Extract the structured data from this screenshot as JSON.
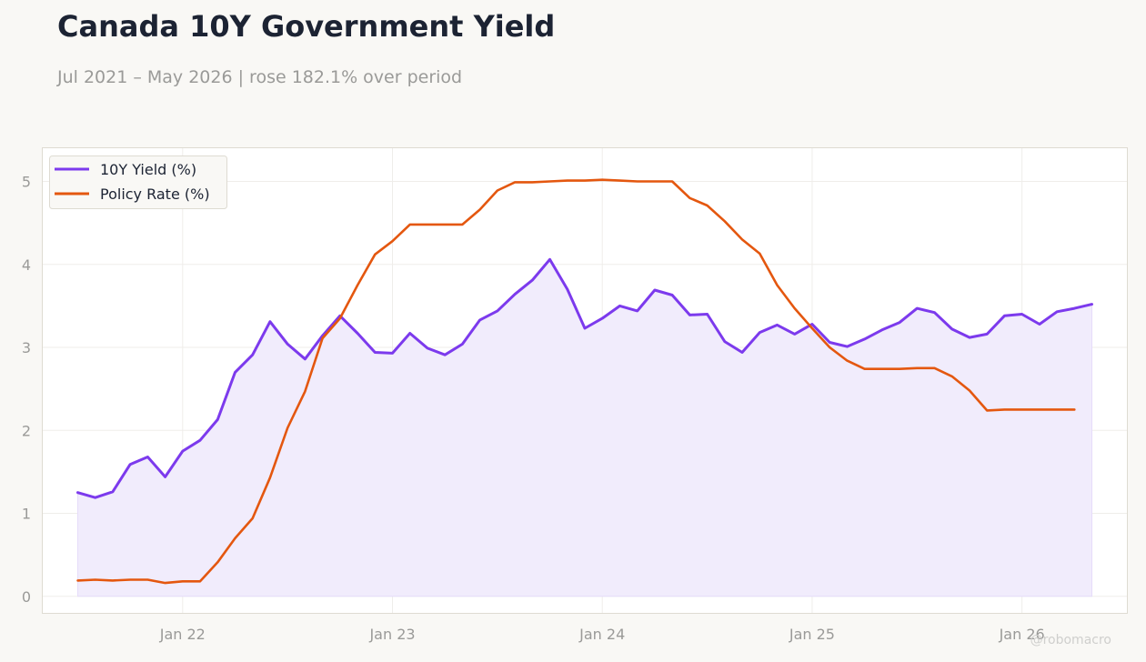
{
  "title": "Canada 10Y Government Yield",
  "subtitle": "Jul 2021 – May 2026 | rose 182.1% over period",
  "watermark": "@robomacro",
  "colors": {
    "background": "#f9f8f5",
    "plot_background": "#ffffff",
    "yield": "#7c3aed",
    "yield_fill": "#f1ecfc",
    "policy": "#e4570f",
    "title": "#1c2333",
    "muted": "#9a9a98"
  },
  "chart_data": {
    "type": "line",
    "title": "Canada 10Y Government Yield",
    "subtitle": "Jul 2021 – May 2026 | rose 182.1% over period",
    "x_ticks": [
      "Jan 22",
      "Jan 23",
      "Jan 24",
      "Jan 25",
      "Jan 26"
    ],
    "y_ticks": [
      0,
      1,
      2,
      3,
      4,
      5
    ],
    "xlim": [
      "2021-05",
      "2026-07"
    ],
    "ylim": [
      -0.2,
      5.4
    ],
    "grid": true,
    "legend_position": "top-left",
    "series": [
      {
        "name": "10Y Yield (%)",
        "color": "#7c3aed",
        "area_fill": true,
        "x": [
          "2021-07",
          "2021-08",
          "2021-09",
          "2021-10",
          "2021-11",
          "2021-12",
          "2022-01",
          "2022-02",
          "2022-03",
          "2022-04",
          "2022-05",
          "2022-06",
          "2022-07",
          "2022-08",
          "2022-09",
          "2022-10",
          "2022-11",
          "2022-12",
          "2023-01",
          "2023-02",
          "2023-03",
          "2023-04",
          "2023-05",
          "2023-06",
          "2023-07",
          "2023-08",
          "2023-09",
          "2023-10",
          "2023-11",
          "2023-12",
          "2024-01",
          "2024-02",
          "2024-03",
          "2024-04",
          "2024-05",
          "2024-06",
          "2024-07",
          "2024-08",
          "2024-09",
          "2024-10",
          "2024-11",
          "2024-12",
          "2025-01",
          "2025-02",
          "2025-03",
          "2025-04",
          "2025-05",
          "2025-06",
          "2025-07",
          "2025-08",
          "2025-09",
          "2025-10",
          "2025-11",
          "2025-12",
          "2026-01",
          "2026-02",
          "2026-03",
          "2026-04",
          "2026-05"
        ],
        "values": [
          1.25,
          1.19,
          1.26,
          1.59,
          1.68,
          1.44,
          1.75,
          1.88,
          2.13,
          2.7,
          2.91,
          3.31,
          3.04,
          2.86,
          3.14,
          3.38,
          3.17,
          2.94,
          2.93,
          3.17,
          2.99,
          2.91,
          3.04,
          3.33,
          3.44,
          3.64,
          3.81,
          4.06,
          3.7,
          3.23,
          3.35,
          3.5,
          3.44,
          3.69,
          3.63,
          3.39,
          3.4,
          3.07,
          2.94,
          3.18,
          3.27,
          3.16,
          3.28,
          3.06,
          3.01,
          3.1,
          3.21,
          3.3,
          3.47,
          3.42,
          3.22,
          3.12,
          3.16,
          3.38,
          3.4,
          3.28,
          3.43,
          3.47,
          3.52
        ]
      },
      {
        "name": "Policy Rate (%)",
        "color": "#e4570f",
        "area_fill": false,
        "x": [
          "2021-07",
          "2021-08",
          "2021-09",
          "2021-10",
          "2021-11",
          "2021-12",
          "2022-01",
          "2022-02",
          "2022-03",
          "2022-04",
          "2022-05",
          "2022-06",
          "2022-07",
          "2022-08",
          "2022-09",
          "2022-10",
          "2022-11",
          "2022-12",
          "2023-01",
          "2023-02",
          "2023-03",
          "2023-04",
          "2023-05",
          "2023-06",
          "2023-07",
          "2023-08",
          "2023-09",
          "2023-10",
          "2023-11",
          "2023-12",
          "2024-01",
          "2024-02",
          "2024-03",
          "2024-04",
          "2024-05",
          "2024-06",
          "2024-07",
          "2024-08",
          "2024-09",
          "2024-10",
          "2024-11",
          "2024-12",
          "2025-01",
          "2025-02",
          "2025-03",
          "2025-04",
          "2025-05",
          "2025-06",
          "2025-07",
          "2025-08",
          "2025-09",
          "2025-10",
          "2025-11",
          "2025-12",
          "2026-01",
          "2026-02",
          "2026-03",
          "2026-04"
        ],
        "values": [
          0.19,
          0.2,
          0.19,
          0.2,
          0.2,
          0.16,
          0.18,
          0.18,
          0.41,
          0.7,
          0.94,
          1.43,
          2.03,
          2.47,
          3.11,
          3.35,
          3.75,
          4.12,
          4.28,
          4.48,
          4.48,
          4.48,
          4.48,
          4.66,
          4.89,
          4.99,
          4.99,
          5.0,
          5.01,
          5.01,
          5.02,
          5.01,
          5.0,
          5.0,
          5.0,
          4.8,
          4.71,
          4.52,
          4.3,
          4.13,
          3.75,
          3.47,
          3.23,
          3.0,
          2.84,
          2.74,
          2.74,
          2.74,
          2.75,
          2.75,
          2.65,
          2.48,
          2.24,
          2.25,
          2.25,
          2.25,
          2.25,
          2.25
        ]
      }
    ]
  }
}
